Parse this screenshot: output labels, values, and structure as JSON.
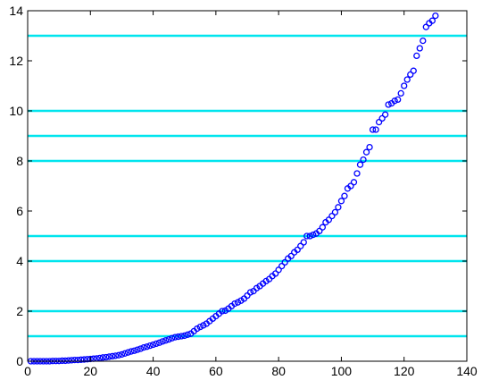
{
  "chart_data": {
    "type": "scatter",
    "title": "",
    "xlabel": "",
    "ylabel": "",
    "xlim": [
      0,
      140
    ],
    "ylim": [
      0,
      14
    ],
    "x_ticks": [
      0,
      20,
      40,
      60,
      80,
      100,
      120,
      140
    ],
    "y_ticks": [
      0,
      2,
      4,
      6,
      8,
      10,
      12,
      14
    ],
    "grid": false,
    "legend": "none",
    "series": [
      {
        "marker": "circle",
        "color": "#0000ff",
        "x": [
          1,
          2,
          3,
          4,
          5,
          6,
          7,
          8,
          9,
          10,
          11,
          12,
          13,
          14,
          15,
          16,
          17,
          18,
          19,
          20,
          21,
          22,
          23,
          24,
          25,
          26,
          27,
          28,
          29,
          30,
          31,
          32,
          33,
          34,
          35,
          36,
          37,
          38,
          39,
          40,
          41,
          42,
          43,
          44,
          45,
          46,
          47,
          48,
          49,
          50,
          51,
          52,
          53,
          54,
          55,
          56,
          57,
          58,
          59,
          60,
          61,
          62,
          63,
          64,
          65,
          66,
          67,
          68,
          69,
          70,
          71,
          72,
          73,
          74,
          75,
          76,
          77,
          78,
          79,
          80,
          81,
          82,
          83,
          84,
          85,
          86,
          87,
          88,
          89,
          90,
          91,
          92,
          93,
          94,
          95,
          96,
          97,
          98,
          99,
          100,
          101,
          102,
          103,
          104,
          105,
          106,
          107,
          108,
          109,
          110,
          111,
          112,
          113,
          114,
          115,
          116,
          117,
          118,
          119,
          120,
          121,
          122,
          123,
          124,
          125,
          126,
          127,
          128,
          129,
          130
        ],
        "y": [
          0.0,
          0.0,
          0.0,
          0.0,
          0.0,
          0.0,
          0.0,
          0.01,
          0.01,
          0.01,
          0.02,
          0.02,
          0.03,
          0.04,
          0.05,
          0.05,
          0.06,
          0.07,
          0.08,
          0.09,
          0.1,
          0.11,
          0.13,
          0.15,
          0.16,
          0.18,
          0.2,
          0.22,
          0.24,
          0.27,
          0.31,
          0.35,
          0.39,
          0.42,
          0.46,
          0.5,
          0.55,
          0.58,
          0.62,
          0.66,
          0.7,
          0.74,
          0.79,
          0.83,
          0.87,
          0.92,
          0.96,
          0.98,
          1.0,
          1.02,
          1.06,
          1.1,
          1.2,
          1.3,
          1.37,
          1.43,
          1.5,
          1.6,
          1.7,
          1.8,
          1.9,
          2.0,
          2.02,
          2.1,
          2.2,
          2.3,
          2.35,
          2.42,
          2.5,
          2.62,
          2.75,
          2.8,
          2.92,
          3.0,
          3.1,
          3.2,
          3.28,
          3.4,
          3.5,
          3.65,
          3.8,
          3.95,
          4.1,
          4.2,
          4.35,
          4.45,
          4.6,
          4.75,
          5.0,
          5.0,
          5.05,
          5.1,
          5.2,
          5.35,
          5.55,
          5.65,
          5.8,
          5.95,
          6.15,
          6.4,
          6.6,
          6.9,
          7.0,
          7.15,
          7.5,
          7.85,
          8.05,
          8.35,
          8.55,
          9.25,
          9.25,
          9.55,
          9.7,
          9.85,
          10.25,
          10.3,
          10.4,
          10.45,
          10.7,
          11.0,
          11.25,
          11.45,
          11.6,
          12.2,
          12.5,
          12.8,
          13.35,
          13.5,
          13.6,
          13.8
        ]
      }
    ],
    "horizontal_lines": {
      "color": "#00e5ee",
      "values": [
        1,
        2,
        4,
        5,
        8,
        9,
        10,
        13
      ]
    }
  }
}
